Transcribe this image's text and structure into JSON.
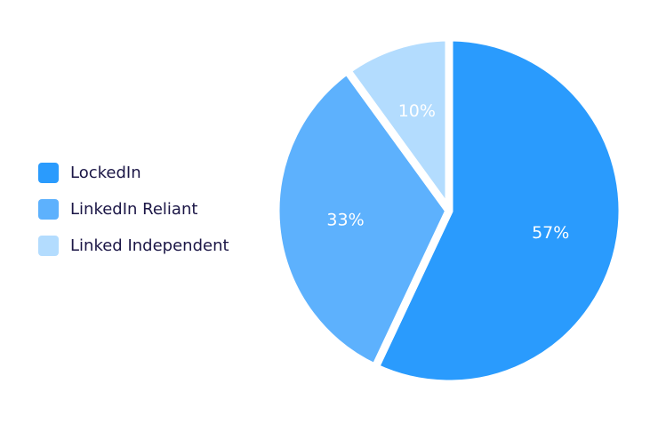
{
  "chart_data": {
    "type": "pie",
    "categories": [
      "LockedIn",
      "LinkedIn Reliant",
      "Linked Independent"
    ],
    "values": [
      57,
      33,
      10
    ],
    "value_labels": [
      "57%",
      "33%",
      "10%"
    ],
    "colors": [
      "#2a9bfd",
      "#5db1fd",
      "#b3dcfe"
    ],
    "legend": "left"
  }
}
